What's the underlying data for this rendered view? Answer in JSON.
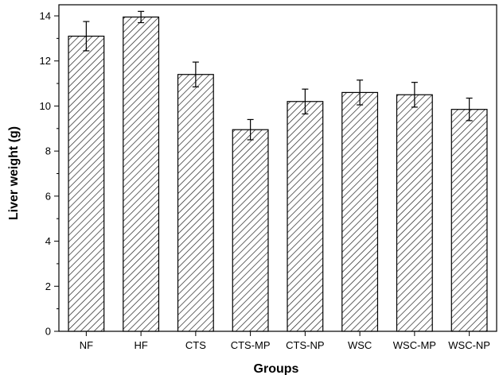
{
  "chart_data": {
    "type": "bar",
    "title": "",
    "xlabel": "Groups",
    "ylabel": "Liver weight (g)",
    "ylim": [
      0,
      14
    ],
    "yticks": [
      0,
      2,
      4,
      6,
      8,
      10,
      12,
      14
    ],
    "categories": [
      "NF",
      "HF",
      "CTS",
      "CTS-MP",
      "CTS-NP",
      "WSC",
      "WSC-MP",
      "WSC-NP"
    ],
    "values": [
      13.1,
      13.95,
      11.4,
      8.95,
      10.2,
      10.6,
      10.5,
      9.85
    ],
    "errors": [
      0.65,
      0.25,
      0.55,
      0.45,
      0.55,
      0.55,
      0.55,
      0.5
    ],
    "bar_fill": "diagonal-hatch",
    "bar_color": "#ffffff",
    "edge_color": "#000000",
    "grid": false,
    "legend": "none"
  }
}
